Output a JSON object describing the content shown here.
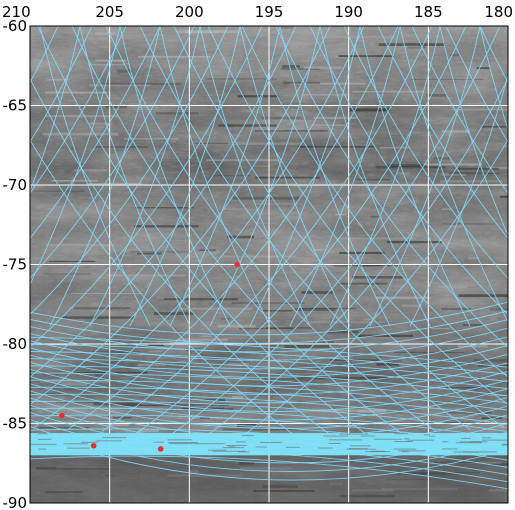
{
  "x_axis": {
    "tick_labels": [
      "210",
      "205",
      "200",
      "195",
      "190",
      "185",
      "180"
    ],
    "range": [
      210,
      180
    ]
  },
  "y_axis": {
    "tick_labels": [
      "-60",
      "-65",
      "-70",
      "-75",
      "-80",
      "-85",
      "-90"
    ],
    "range": [
      -60,
      -90
    ]
  },
  "colors": {
    "background": "#ffffff",
    "grid": "#ffffff",
    "track": "#7fdcff",
    "track_dense": "#7fe3fb",
    "marker": "#e8322b",
    "terrain_dark": "#3c3c3c",
    "terrain_mid": "#7a7a7a",
    "terrain_light": "#a8a8a8"
  },
  "grid": true,
  "markers": [
    {
      "lon": 197.0,
      "lat": -75.0
    },
    {
      "lon": 208.0,
      "lat": -84.5
    },
    {
      "lon": 206.0,
      "lat": -86.4
    },
    {
      "lon": 201.8,
      "lat": -86.6
    }
  ],
  "track_band": {
    "lat_from": -85.6,
    "lat_to": -87.0
  }
}
